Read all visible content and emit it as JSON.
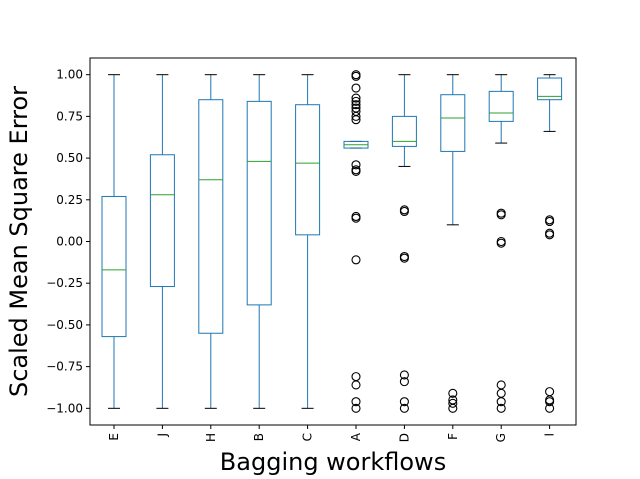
{
  "chart_data": {
    "type": "box",
    "title": "",
    "xlabel": "Bagging workflows",
    "ylabel": "Scaled Mean Square Error",
    "ylim": [
      -1.1,
      1.1
    ],
    "yticks": [
      -1.0,
      -0.75,
      -0.5,
      -0.25,
      0.0,
      0.25,
      0.5,
      0.75,
      1.0
    ],
    "ytick_labels": [
      "−1.00",
      "−0.75",
      "−0.50",
      "−0.25",
      "0.00",
      "0.25",
      "0.50",
      "0.75",
      "1.00"
    ],
    "grid": false,
    "categories": [
      "E",
      "J",
      "H",
      "B",
      "C",
      "A",
      "D",
      "F",
      "G",
      "I"
    ],
    "boxes": [
      {
        "category": "E",
        "whisker_low": -1.0,
        "q1": -0.57,
        "median": -0.17,
        "q3": 0.27,
        "whisker_high": 1.0,
        "outliers": []
      },
      {
        "category": "J",
        "whisker_low": -1.0,
        "q1": -0.27,
        "median": 0.28,
        "q3": 0.52,
        "whisker_high": 1.0,
        "outliers": []
      },
      {
        "category": "H",
        "whisker_low": -1.0,
        "q1": -0.55,
        "median": 0.37,
        "q3": 0.85,
        "whisker_high": 1.0,
        "outliers": []
      },
      {
        "category": "B",
        "whisker_low": -1.0,
        "q1": -0.38,
        "median": 0.48,
        "q3": 0.84,
        "whisker_high": 1.0,
        "outliers": []
      },
      {
        "category": "C",
        "whisker_low": -1.0,
        "q1": 0.04,
        "median": 0.47,
        "q3": 0.82,
        "whisker_high": 1.0,
        "outliers": []
      },
      {
        "category": "A",
        "whisker_low": 0.56,
        "q1": 0.56,
        "median": 0.58,
        "q3": 0.6,
        "whisker_high": 0.6,
        "outliers": [
          1.0,
          0.99,
          0.92,
          0.86,
          0.84,
          0.82,
          0.8,
          0.78,
          0.75,
          0.73,
          0.46,
          0.43,
          0.42,
          0.15,
          0.14,
          -0.11,
          -0.81,
          -0.86,
          -0.96,
          -1.0
        ]
      },
      {
        "category": "D",
        "whisker_low": 0.45,
        "q1": 0.57,
        "median": 0.6,
        "q3": 0.75,
        "whisker_high": 1.0,
        "outliers": [
          0.19,
          0.18,
          -0.09,
          -0.1,
          -0.8,
          -0.84,
          -0.96,
          -1.0
        ]
      },
      {
        "category": "F",
        "whisker_low": 0.1,
        "q1": 0.54,
        "median": 0.74,
        "q3": 0.88,
        "whisker_high": 1.0,
        "outliers": [
          -0.91,
          -0.95,
          -0.97,
          -1.0
        ]
      },
      {
        "category": "G",
        "whisker_low": 0.59,
        "q1": 0.72,
        "median": 0.77,
        "q3": 0.9,
        "whisker_high": 1.0,
        "outliers": [
          0.17,
          0.16,
          0.0,
          -0.01,
          -0.86,
          -0.91,
          -0.96,
          -1.0
        ]
      },
      {
        "category": "I",
        "whisker_low": 0.66,
        "q1": 0.85,
        "median": 0.87,
        "q3": 0.98,
        "whisker_high": 1.0,
        "outliers": [
          0.13,
          0.12,
          0.05,
          0.04,
          -0.9,
          -0.95,
          -0.96,
          -1.0
        ]
      }
    ],
    "colors": {
      "box": "#1f77b4",
      "median": "#2ca02c",
      "axis": "#000000"
    }
  }
}
